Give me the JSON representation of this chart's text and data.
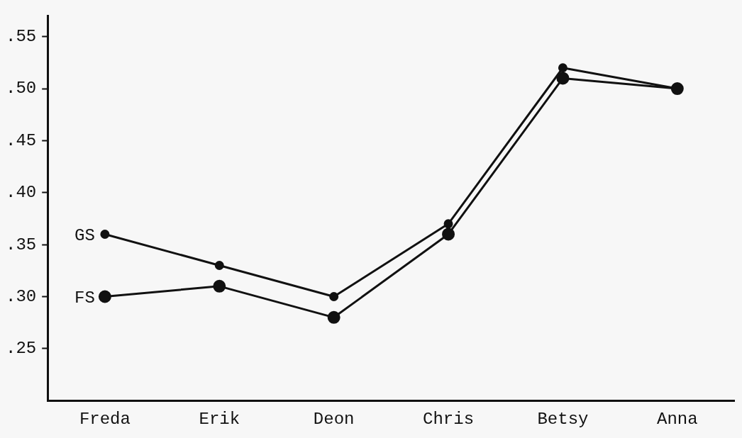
{
  "chart_data": {
    "type": "line",
    "categories": [
      "Freda",
      "Erik",
      "Deon",
      "Chris",
      "Betsy",
      "Anna"
    ],
    "series": [
      {
        "name": "GS",
        "color": "#111111",
        "values": [
          0.36,
          0.33,
          0.3,
          0.37,
          0.52,
          0.5
        ]
      },
      {
        "name": "FS",
        "color": "#111111",
        "values": [
          0.3,
          0.31,
          0.28,
          0.36,
          0.51,
          0.5
        ]
      }
    ],
    "ylim": [
      0.2,
      0.57
    ],
    "yticks": [
      {
        "value": 0.25,
        "label": ".25"
      },
      {
        "value": 0.3,
        "label": ".30"
      },
      {
        "value": 0.35,
        "label": ".35"
      },
      {
        "value": 0.4,
        "label": ".40"
      },
      {
        "value": 0.45,
        "label": ".45"
      },
      {
        "value": 0.5,
        "label": ".50"
      },
      {
        "value": 0.55,
        "label": ".55"
      }
    ],
    "grid": false,
    "legend": false,
    "marker": "circle",
    "line_style": "solid"
  }
}
